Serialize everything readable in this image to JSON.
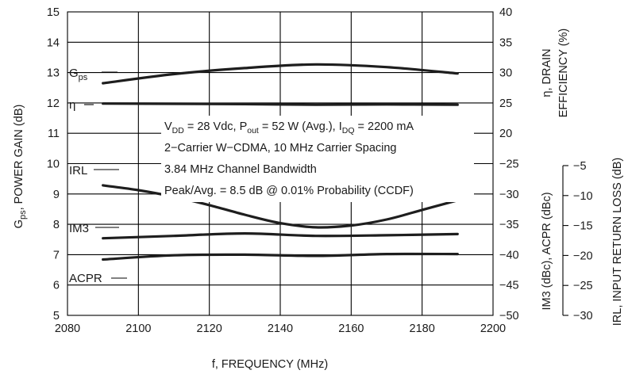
{
  "chart_data": {
    "type": "line",
    "xlabel": "f, FREQUENCY (MHz)",
    "x_ticks": [
      "2080",
      "2100",
      "2120",
      "2140",
      "2160",
      "2180",
      "2200"
    ],
    "xlim": [
      2080,
      2200
    ],
    "left_axis": {
      "label_main": "G",
      "label_sub": "ps",
      "label_rest": ",  POWER GAIN (dB)",
      "ylim": [
        5,
        15
      ],
      "ticks": [
        "5",
        "6",
        "7",
        "8",
        "9",
        "10",
        "11",
        "12",
        "13",
        "14",
        "15"
      ]
    },
    "right_axis_1": {
      "label_line1": "η, DRAIN",
      "label_line2": "EFFICIENCY (%)",
      "ylim": [
        0,
        40
      ],
      "ticks": [
        "25",
        "30",
        "35",
        "40"
      ],
      "ticks_lower": [
        "20"
      ]
    },
    "right_axis_2": {
      "label": "IM3 (dBc), ACPR (dBc)",
      "ylim": [
        -50,
        -20
      ],
      "ticks": [
        "−25",
        "−30",
        "−35",
        "−40",
        "−45",
        "−50"
      ]
    },
    "right_axis_3": {
      "label": "IRL,  INPUT RETURN LOSS (dB)",
      "ylim": [
        -30,
        -5
      ],
      "ticks": [
        "−5",
        "−10",
        "−15",
        "−20",
        "−25",
        "−30"
      ]
    },
    "grid": true,
    "series": [
      {
        "name_main": "G",
        "name_sub": "ps",
        "axis": "left",
        "x": [
          2090,
          2110,
          2130,
          2150,
          2170,
          2190
        ],
        "y": [
          12.65,
          12.95,
          13.15,
          13.27,
          13.18,
          12.97
        ]
      },
      {
        "name": "η",
        "axis": "right_1",
        "x": [
          2090,
          2110,
          2130,
          2150,
          2170,
          2190
        ],
        "y": [
          24.9,
          24.85,
          24.8,
          24.7,
          24.75,
          24.7
        ]
      },
      {
        "name": "IRL",
        "axis": "right_3",
        "x": [
          2090,
          2100,
          2110,
          2120,
          2130,
          2140,
          2150,
          2160,
          2170,
          2180,
          2190
        ],
        "y": [
          -8.3,
          -9.1,
          -10.2,
          -11.6,
          -13.2,
          -14.6,
          -15.3,
          -15.0,
          -14.0,
          -12.4,
          -10.8
        ]
      },
      {
        "name": "IM3",
        "axis": "right_2",
        "x": [
          2090,
          2110,
          2130,
          2150,
          2170,
          2190
        ],
        "y": [
          -37.3,
          -36.9,
          -36.5,
          -36.9,
          -36.8,
          -36.6
        ]
      },
      {
        "name": "ACPR",
        "axis": "right_2",
        "x": [
          2090,
          2110,
          2130,
          2150,
          2170,
          2190
        ],
        "y": [
          -40.8,
          -40.1,
          -40.0,
          -40.2,
          -39.9,
          -39.9
        ]
      }
    ],
    "annotation": {
      "line1": {
        "v": "V",
        "v_sub": "DD",
        "a": " = 28 Vdc, P",
        "a_sub": "out",
        "b": " = 52 W (Avg.), I",
        "b_sub": "DQ",
        "c": " = 2200 mA"
      },
      "line2": "2−Carrier W−CDMA, 10 MHz Carrier Spacing",
      "line3": "3.84 MHz Channel Bandwidth",
      "line4": "Peak/Avg. = 8.5 dB @ 0.01% Probability (CCDF)"
    }
  }
}
